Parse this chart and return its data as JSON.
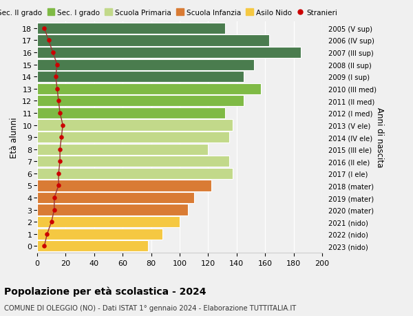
{
  "ages": [
    18,
    17,
    16,
    15,
    14,
    13,
    12,
    11,
    10,
    9,
    8,
    7,
    6,
    5,
    4,
    3,
    2,
    1,
    0
  ],
  "bar_values": [
    132,
    163,
    185,
    152,
    145,
    157,
    145,
    132,
    137,
    135,
    120,
    135,
    137,
    122,
    110,
    106,
    100,
    88,
    78
  ],
  "bar_colors": [
    "#4a7c4e",
    "#4a7c4e",
    "#4a7c4e",
    "#4a7c4e",
    "#4a7c4e",
    "#7fba45",
    "#7fba45",
    "#7fba45",
    "#c2d98a",
    "#c2d98a",
    "#c2d98a",
    "#c2d98a",
    "#c2d98a",
    "#d97b34",
    "#d97b34",
    "#d97b34",
    "#f5c842",
    "#f5c842",
    "#f5c842"
  ],
  "stranieri_values": [
    5,
    8,
    11,
    14,
    13,
    14,
    15,
    16,
    18,
    17,
    16,
    16,
    15,
    15,
    12,
    12,
    10,
    7,
    5
  ],
  "right_labels": [
    "2005 (V sup)",
    "2006 (IV sup)",
    "2007 (III sup)",
    "2008 (II sup)",
    "2009 (I sup)",
    "2010 (III med)",
    "2011 (II med)",
    "2012 (I med)",
    "2013 (V ele)",
    "2014 (IV ele)",
    "2015 (III ele)",
    "2016 (II ele)",
    "2017 (I ele)",
    "2018 (mater)",
    "2019 (mater)",
    "2020 (mater)",
    "2021 (nido)",
    "2022 (nido)",
    "2023 (nido)"
  ],
  "legend_labels": [
    "Sec. II grado",
    "Sec. I grado",
    "Scuola Primaria",
    "Scuola Infanzia",
    "Asilo Nido",
    "Stranieri"
  ],
  "legend_colors": [
    "#4a7c4e",
    "#7fba45",
    "#c2d98a",
    "#d97b34",
    "#f5c842",
    "#cc0000"
  ],
  "ylabel": "Età alunni",
  "right_ylabel": "Anni di nascita",
  "title": "Popolazione per età scolastica - 2024",
  "subtitle": "COMUNE DI OLEGGIO (NO) - Dati ISTAT 1° gennaio 2024 - Elaborazione TUTTITALIA.IT",
  "xlim": [
    0,
    200
  ],
  "xticks": [
    0,
    20,
    40,
    60,
    80,
    100,
    120,
    140,
    160,
    180,
    200
  ],
  "bg_color": "#f0f0f0",
  "stranieri_color": "#cc0000",
  "stranieri_line_color": "#993333"
}
